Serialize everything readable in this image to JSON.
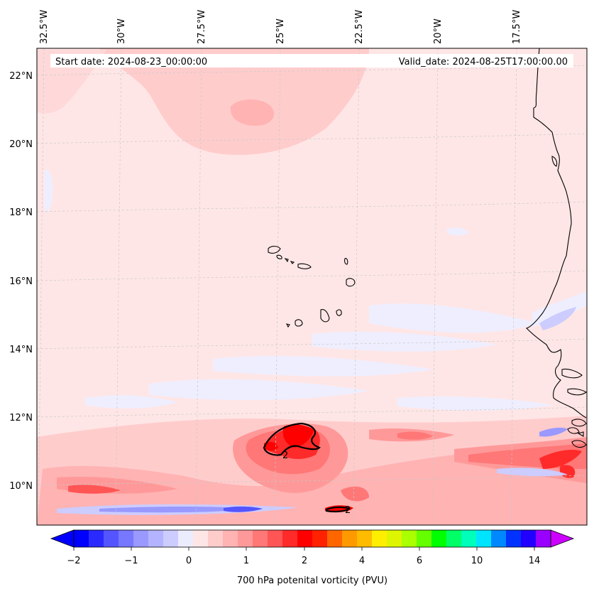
{
  "map": {
    "start_date": "Start date: 2024-08-23_00:00:00",
    "valid_date": "Valid_date: 2024-08-25T17:00:00.00",
    "extent": {
      "lon_min": -33.0,
      "lon_max": -15.5,
      "lat_min": 8.9,
      "lat_max": 22.8
    },
    "lon_labels": [
      "32.5°W",
      "30°W",
      "27.5°W",
      "25°W",
      "22.5°W",
      "20°W",
      "17.5°W"
    ],
    "lat_labels": [
      "22°N",
      "20°N",
      "18°N",
      "16°N",
      "14°N",
      "12°N",
      "10°N"
    ],
    "contour_label": "2",
    "colors": {
      "background_field": "#ffe6e6",
      "coastline": "#000000",
      "gridline": "#c8c8c8"
    }
  },
  "colorbar": {
    "title": "700 hPa potenital vorticity (PVU)",
    "tick_labels": [
      "−2",
      "−1",
      "0",
      "1",
      "2",
      "4",
      "6",
      "10",
      "14"
    ],
    "colors": [
      "#0000ff",
      "#2a2aff",
      "#5555ff",
      "#7777ff",
      "#9999ff",
      "#b3b3ff",
      "#ccccff",
      "#ececff",
      "#ffe6e6",
      "#ffcccc",
      "#ffb3b3",
      "#ff9999",
      "#ff7777",
      "#ff5555",
      "#ff2a2a",
      "#ff0000",
      "#ff2200",
      "#ff6600",
      "#ff9900",
      "#ffbb00",
      "#ffee00",
      "#ddf500",
      "#aaff00",
      "#66ff00",
      "#00ff00",
      "#00ff66",
      "#00ffbb",
      "#00e5ff",
      "#0088ff",
      "#0033ff",
      "#2200ff",
      "#9900ff"
    ],
    "extend_low_color": "#0000ff",
    "extend_high_color": "#cc00ff"
  }
}
